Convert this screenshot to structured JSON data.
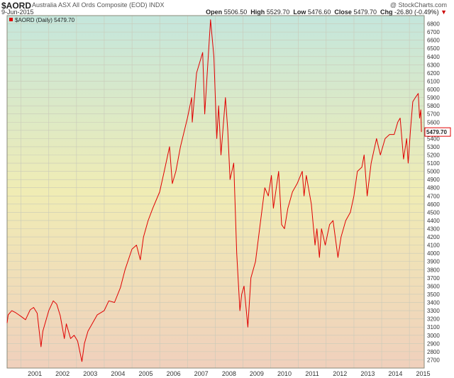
{
  "header": {
    "symbol": "$AORD",
    "description": "Australia ASX All Ords Composite (EOD) INDX",
    "date": "9-Jun-2015",
    "brand": "@ StockCharts.com",
    "open_label": "Open",
    "open_value": "5506.50",
    "high_label": "High",
    "high_value": "5529.70",
    "low_label": "Low",
    "low_value": "5476.60",
    "close_label": "Close",
    "close_value": "5479.70",
    "chg_label": "Chg",
    "chg_value": "-26.80 (-0.49%)",
    "chg_arrow": "▼"
  },
  "colors": {
    "line": "#e00000",
    "bg_top": "#c4e6dc",
    "bg_mid": "#f0ecb4",
    "bg_bottom": "#f0d0bc",
    "grid": "#c9c9b9",
    "axis_text": "#333333"
  },
  "chart_data": {
    "type": "line",
    "legend": "$AORD (Daily) 5479.70",
    "last_value_label": "5479.70",
    "x_tick_labels": [
      "2001",
      "2002",
      "2003",
      "2004",
      "2005",
      "2006",
      "2007",
      "2008",
      "2009",
      "2010",
      "2011",
      "2012",
      "2013",
      "2014",
      "2015"
    ],
    "ylim": [
      2600,
      6900
    ],
    "y_ticks": [
      2700,
      2800,
      2900,
      3000,
      3100,
      3200,
      3300,
      3400,
      3500,
      3600,
      3700,
      3800,
      3900,
      4000,
      4100,
      4200,
      4300,
      4400,
      4500,
      4600,
      4700,
      4800,
      4900,
      5000,
      5100,
      5200,
      5300,
      5400,
      5500,
      5600,
      5700,
      5800,
      5900,
      6000,
      6100,
      6200,
      6300,
      6400,
      6500,
      6600,
      6700,
      6800
    ],
    "xlim": [
      "2000-07-01",
      "2015-07-15"
    ],
    "grid": true,
    "legend_position": "top-left",
    "y_axis_position": "right",
    "series": [
      {
        "values": [
          [
            "2000-07-01",
            3150
          ],
          [
            "2000-07-15",
            3250
          ],
          [
            "2000-09-01",
            3300
          ],
          [
            "2000-10-15",
            3280
          ],
          [
            "2000-12-01",
            3250
          ],
          [
            "2001-01-01",
            3230
          ],
          [
            "2001-03-01",
            3190
          ],
          [
            "2001-05-01",
            3310
          ],
          [
            "2001-06-15",
            3340
          ],
          [
            "2001-08-01",
            3270
          ],
          [
            "2001-09-20",
            2860
          ],
          [
            "2001-10-15",
            3050
          ],
          [
            "2001-12-31",
            3300
          ],
          [
            "2002-03-01",
            3420
          ],
          [
            "2002-04-15",
            3380
          ],
          [
            "2002-06-01",
            3240
          ],
          [
            "2002-07-25",
            2960
          ],
          [
            "2002-08-20",
            3140
          ],
          [
            "2002-10-15",
            2960
          ],
          [
            "2002-12-01",
            3000
          ],
          [
            "2003-01-15",
            2930
          ],
          [
            "2003-03-13",
            2680
          ],
          [
            "2003-04-15",
            2900
          ],
          [
            "2003-06-01",
            3050
          ],
          [
            "2003-08-01",
            3150
          ],
          [
            "2003-10-01",
            3250
          ],
          [
            "2003-12-31",
            3300
          ],
          [
            "2004-03-01",
            3420
          ],
          [
            "2004-05-15",
            3400
          ],
          [
            "2004-08-01",
            3580
          ],
          [
            "2004-10-01",
            3800
          ],
          [
            "2004-12-31",
            4050
          ],
          [
            "2005-03-01",
            4100
          ],
          [
            "2005-04-20",
            3920
          ],
          [
            "2005-06-01",
            4200
          ],
          [
            "2005-08-01",
            4400
          ],
          [
            "2005-10-01",
            4550
          ],
          [
            "2005-12-31",
            4750
          ],
          [
            "2006-03-01",
            5000
          ],
          [
            "2006-05-10",
            5300
          ],
          [
            "2006-06-15",
            4850
          ],
          [
            "2006-08-01",
            5000
          ],
          [
            "2006-10-01",
            5300
          ],
          [
            "2006-12-31",
            5650
          ],
          [
            "2007-02-25",
            5900
          ],
          [
            "2007-03-05",
            5600
          ],
          [
            "2007-05-01",
            6200
          ],
          [
            "2007-07-20",
            6450
          ],
          [
            "2007-08-16",
            5700
          ],
          [
            "2007-10-15",
            6600
          ],
          [
            "2007-11-01",
            6850
          ],
          [
            "2007-12-15",
            6400
          ],
          [
            "2008-01-22",
            5400
          ],
          [
            "2008-02-15",
            5800
          ],
          [
            "2008-03-17",
            5200
          ],
          [
            "2008-05-15",
            5900
          ],
          [
            "2008-06-15",
            5500
          ],
          [
            "2008-07-15",
            4900
          ],
          [
            "2008-09-01",
            5100
          ],
          [
            "2008-10-10",
            4000
          ],
          [
            "2008-11-21",
            3300
          ],
          [
            "2008-12-15",
            3500
          ],
          [
            "2009-01-15",
            3600
          ],
          [
            "2009-03-06",
            3100
          ],
          [
            "2009-04-15",
            3700
          ],
          [
            "2009-06-15",
            3900
          ],
          [
            "2009-08-15",
            4350
          ],
          [
            "2009-10-15",
            4800
          ],
          [
            "2009-11-30",
            4700
          ],
          [
            "2010-01-10",
            4950
          ],
          [
            "2010-02-05",
            4550
          ],
          [
            "2010-04-15",
            5000
          ],
          [
            "2010-05-25",
            4350
          ],
          [
            "2010-07-01",
            4300
          ],
          [
            "2010-08-15",
            4550
          ],
          [
            "2010-10-15",
            4750
          ],
          [
            "2010-12-15",
            4850
          ],
          [
            "2011-02-20",
            5000
          ],
          [
            "2011-03-16",
            4700
          ],
          [
            "2011-04-15",
            4950
          ],
          [
            "2011-06-20",
            4600
          ],
          [
            "2011-08-08",
            4100
          ],
          [
            "2011-09-01",
            4300
          ],
          [
            "2011-10-04",
            3950
          ],
          [
            "2011-11-01",
            4300
          ],
          [
            "2011-12-20",
            4100
          ],
          [
            "2012-02-15",
            4350
          ],
          [
            "2012-04-01",
            4400
          ],
          [
            "2012-06-04",
            3950
          ],
          [
            "2012-07-15",
            4200
          ],
          [
            "2012-09-15",
            4400
          ],
          [
            "2012-11-15",
            4500
          ],
          [
            "2012-12-31",
            4700
          ],
          [
            "2013-02-15",
            5000
          ],
          [
            "2013-04-15",
            5050
          ],
          [
            "2013-05-15",
            5200
          ],
          [
            "2013-06-24",
            4700
          ],
          [
            "2013-08-15",
            5100
          ],
          [
            "2013-10-25",
            5400
          ],
          [
            "2013-12-15",
            5200
          ],
          [
            "2014-02-15",
            5400
          ],
          [
            "2014-04-15",
            5450
          ],
          [
            "2014-06-15",
            5450
          ],
          [
            "2014-08-01",
            5600
          ],
          [
            "2014-09-01",
            5650
          ],
          [
            "2014-10-16",
            5150
          ],
          [
            "2014-11-25",
            5400
          ],
          [
            "2014-12-16",
            5100
          ],
          [
            "2015-01-15",
            5500
          ],
          [
            "2015-02-15",
            5850
          ],
          [
            "2015-03-20",
            5900
          ],
          [
            "2015-04-28",
            5950
          ],
          [
            "2015-05-15",
            5650
          ],
          [
            "2015-05-31",
            5750
          ],
          [
            "2015-06-09",
            5480
          ]
        ]
      }
    ]
  }
}
